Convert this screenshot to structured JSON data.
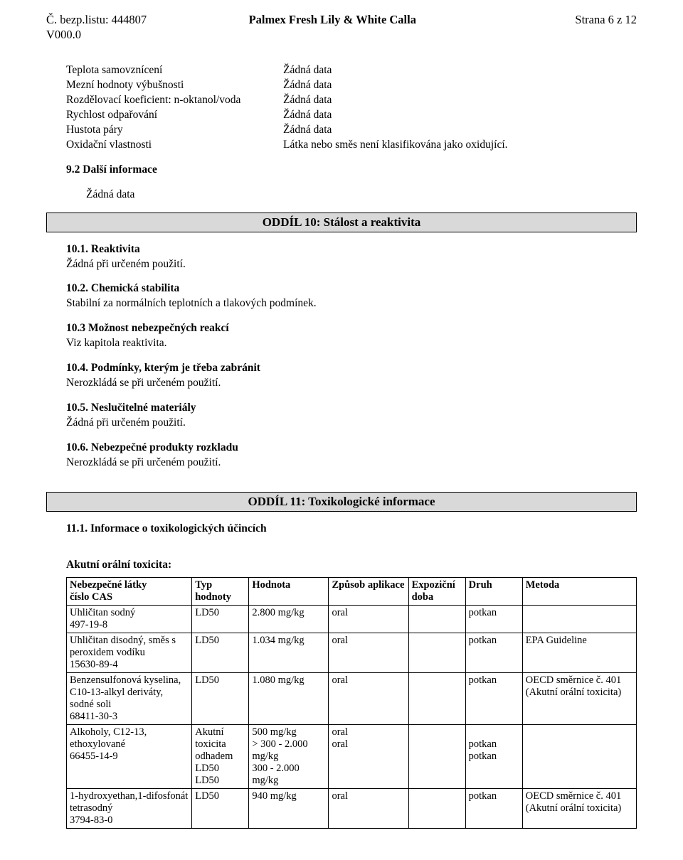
{
  "header": {
    "docno_label": "Č. bezp.listu:",
    "docno_value": "444807",
    "version": "V000.0",
    "title": "Palmex Fresh Lily & White Calla",
    "page_label": "Strana 6 z 12"
  },
  "properties": [
    {
      "label": "Teplota samovznícení",
      "value": "Žádná data"
    },
    {
      "label": "Mezní hodnoty výbušnosti",
      "value": "Žádná data"
    },
    {
      "label": "Rozdělovací koeficient: n-oktanol/voda",
      "value": "Žádná data"
    },
    {
      "label": "Rychlost odpařování",
      "value": "Žádná data"
    },
    {
      "label": "Hustota páry",
      "value": "Žádná data"
    },
    {
      "label": "Oxidační vlastnosti",
      "value": "Látka nebo směs není klasifikována jako oxidující."
    }
  ],
  "subinfo": {
    "heading": "9.2 Další informace",
    "value": "Žádná data"
  },
  "section10": {
    "title": "ODDÍL 10: Stálost a reaktivita",
    "items": [
      {
        "head": "10.1. Reaktivita",
        "body": "Žádná při určeném použití."
      },
      {
        "head": "10.2. Chemická stabilita",
        "body": "Stabilní za normálních teplotních a tlakových podmínek."
      },
      {
        "head": "10.3 Možnost nebezpečných reakcí",
        "body": "Viz kapitola reaktivita."
      },
      {
        "head": "10.4. Podmínky, kterým je třeba zabránit",
        "body": "Nerozkládá se při určeném použití."
      },
      {
        "head": "10.5. Neslučitelné materiály",
        "body": "Žádná při určeném použití."
      },
      {
        "head": "10.6. Nebezpečné produkty rozkladu",
        "body": "Nerozkládá se při určeném použití."
      }
    ]
  },
  "section11": {
    "title": "ODDÍL 11: Toxikologické informace",
    "subhead": "11.1. Informace o toxikologických účincích",
    "tableTitle": "Akutní orální toxicita:",
    "columns": [
      "Nebezpečné látky\nčíslo CAS",
      "Typ hodnoty",
      "Hodnota",
      "Způsob aplikace",
      "Expoziční doba",
      "Druh",
      "Metoda"
    ],
    "rows": [
      {
        "c1": "Uhličitan sodný\n497-19-8",
        "c2": "LD50",
        "c3": "2.800 mg/kg",
        "c4": "oral",
        "c5": "",
        "c6": "potkan",
        "c7": ""
      },
      {
        "c1": "Uhličitan disodný, směs s peroxidem vodíku\n15630-89-4",
        "c2": "LD50",
        "c3": "1.034 mg/kg",
        "c4": "oral",
        "c5": "",
        "c6": "potkan",
        "c7": "EPA Guideline"
      },
      {
        "c1": "Benzensulfonová kyselina, C10-13-alkyl deriváty, sodné soli\n68411-30-3",
        "c2": "LD50",
        "c3": "1.080 mg/kg",
        "c4": "oral",
        "c5": "",
        "c6": "potkan",
        "c7": "OECD směrnice č. 401 (Akutní orální toxicita)"
      },
      {
        "c1": "Alkoholy, C12-13, ethoxylované\n66455-14-9",
        "c2": "Akutní toxicita odhadem\nLD50\nLD50",
        "c3": "500 mg/kg\n> 300 - 2.000 mg/kg\n300 - 2.000 mg/kg",
        "c4": "oral\noral",
        "c5": "",
        "c6": "\npotkan\npotkan",
        "c7": ""
      },
      {
        "c1": "1-hydroxyethan,1-difosfonát tetrasodný\n3794-83-0",
        "c2": "LD50",
        "c3": "940 mg/kg",
        "c4": "oral",
        "c5": "",
        "c6": "potkan",
        "c7": "OECD směrnice č. 401 (Akutní orální toxicita)"
      }
    ],
    "colWidths": [
      "22%",
      "10%",
      "14%",
      "14%",
      "10%",
      "10%",
      "20%"
    ]
  }
}
